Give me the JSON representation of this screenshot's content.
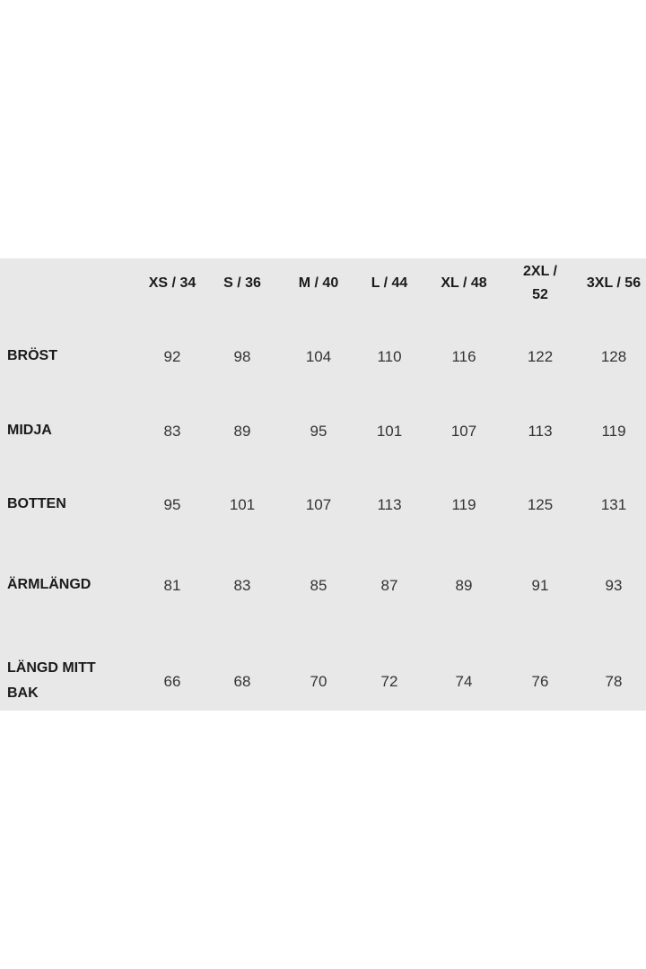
{
  "size_chart": {
    "columns": [
      "XS / 34",
      "S / 36",
      "M / 40",
      "L / 44",
      "XL / 48",
      "2XL / 52",
      "3XL / 56"
    ],
    "rows": [
      {
        "label": "BRÖST",
        "values": [
          "92",
          "98",
          "104",
          "110",
          "116",
          "122",
          "128"
        ]
      },
      {
        "label": "MIDJA",
        "values": [
          "83",
          "89",
          "95",
          "101",
          "107",
          "113",
          "119"
        ]
      },
      {
        "label": "BOTTEN",
        "values": [
          "95",
          "101",
          "107",
          "113",
          "119",
          "125",
          "131"
        ]
      },
      {
        "label": "ÄRMLÄNGD",
        "values": [
          "81",
          "83",
          "85",
          "87",
          "89",
          "91",
          "93"
        ]
      },
      {
        "label": "LÄNGD MITT BAK",
        "values": [
          "66",
          "68",
          "70",
          "72",
          "74",
          "76",
          "78"
        ]
      }
    ],
    "background_color": "#e8e8e8"
  }
}
